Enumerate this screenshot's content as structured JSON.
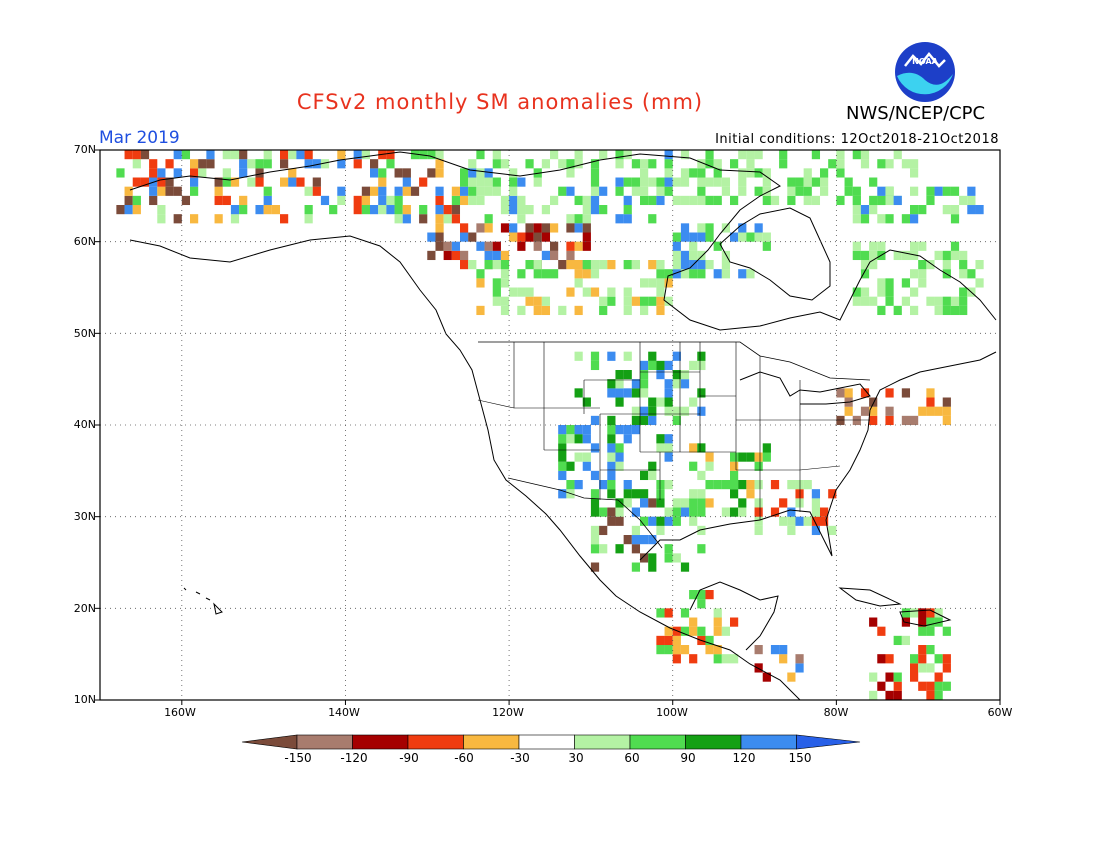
{
  "header": {
    "title": "CFSv2 monthly SM anomalies (mm)",
    "agency": "NWS/NCEP/CPC",
    "logo_text": "NOAA",
    "month": "Mar 2019",
    "initial_conditions": "Initial conditions: 12Oct2018-21Oct2018"
  },
  "map": {
    "lat_labels": [
      "70N",
      "60N",
      "50N",
      "40N",
      "30N",
      "20N",
      "10N"
    ],
    "lon_labels": [
      "160W",
      "140W",
      "120W",
      "100W",
      "80W",
      "60W"
    ],
    "lat_range": [
      10,
      70
    ],
    "lon_range": [
      -170,
      -60
    ],
    "grid": "dotted"
  },
  "legend": {
    "labels": [
      "-150",
      "-120",
      "-90",
      "-60",
      "-30",
      "30",
      "60",
      "90",
      "120",
      "150"
    ],
    "colors": [
      "#7b4b3a",
      "#a87c6e",
      "#a50000",
      "#f03c10",
      "#f8b840",
      "#ffffff",
      "#b4f2a4",
      "#50dc50",
      "#14a014",
      "#3c8cf0",
      "#2860e8"
    ]
  }
}
